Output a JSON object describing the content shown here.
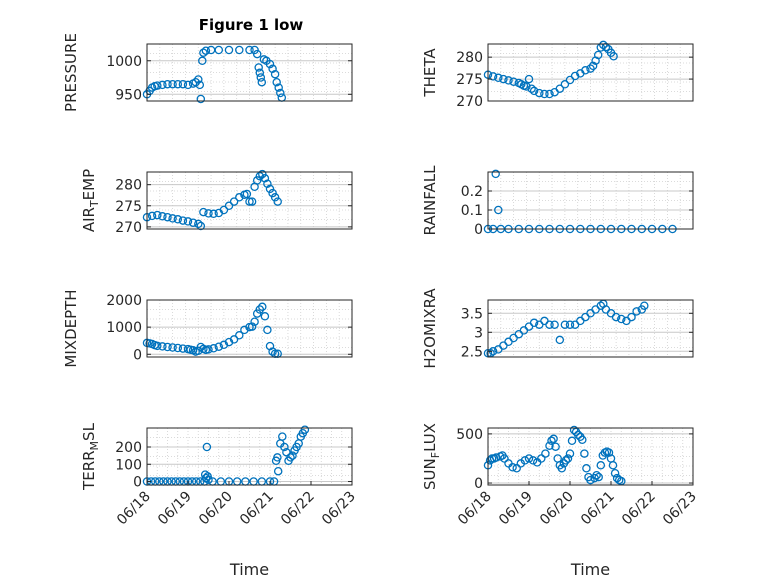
{
  "figure_title": "Figure 1 low",
  "marker_color": "#0072BD",
  "chart_data": [
    {
      "type": "scatter",
      "ylabel": "PRESSURE",
      "ylim": [
        940,
        1025
      ],
      "yticks": [
        950,
        1000
      ],
      "xlim": [
        "06/18",
        "06/22"
      ],
      "xticks": [],
      "points": [
        [
          0.0,
          950
        ],
        [
          0.05,
          955
        ],
        [
          0.1,
          960
        ],
        [
          0.15,
          962
        ],
        [
          0.2,
          963
        ],
        [
          0.3,
          964
        ],
        [
          0.4,
          965
        ],
        [
          0.5,
          965
        ],
        [
          0.6,
          965
        ],
        [
          0.7,
          965
        ],
        [
          0.8,
          964
        ],
        [
          0.9,
          966
        ],
        [
          0.95,
          968
        ],
        [
          1.0,
          972
        ],
        [
          1.03,
          964
        ],
        [
          1.05,
          943
        ],
        [
          1.08,
          1000
        ],
        [
          1.1,
          1012
        ],
        [
          1.15,
          1015
        ],
        [
          1.25,
          1016
        ],
        [
          1.4,
          1016
        ],
        [
          1.6,
          1016
        ],
        [
          1.8,
          1016
        ],
        [
          2.0,
          1016
        ],
        [
          2.1,
          1016
        ],
        [
          2.15,
          1010
        ],
        [
          2.18,
          990
        ],
        [
          2.2,
          982
        ],
        [
          2.22,
          975
        ],
        [
          2.24,
          968
        ],
        [
          2.28,
          1002
        ],
        [
          2.33,
          1000
        ],
        [
          2.4,
          995
        ],
        [
          2.45,
          988
        ],
        [
          2.5,
          980
        ],
        [
          2.53,
          968
        ],
        [
          2.57,
          960
        ],
        [
          2.6,
          952
        ],
        [
          2.63,
          945
        ]
      ]
    },
    {
      "type": "scatter",
      "ylabel": "THETA",
      "ylim": [
        270,
        283
      ],
      "yticks": [
        270,
        275,
        280
      ],
      "xlim": [
        "06/18",
        "06/22"
      ],
      "xticks": [],
      "points": [
        [
          0.0,
          276
        ],
        [
          0.1,
          275.6
        ],
        [
          0.2,
          275.3
        ],
        [
          0.3,
          275
        ],
        [
          0.4,
          274.7
        ],
        [
          0.5,
          274.4
        ],
        [
          0.6,
          274.1
        ],
        [
          0.65,
          273.8
        ],
        [
          0.7,
          273.5
        ],
        [
          0.75,
          273.3
        ],
        [
          0.8,
          275
        ],
        [
          0.85,
          272.8
        ],
        [
          0.9,
          272.3
        ],
        [
          1.0,
          271.8
        ],
        [
          1.1,
          271.6
        ],
        [
          1.2,
          271.6
        ],
        [
          1.3,
          272
        ],
        [
          1.4,
          272.8
        ],
        [
          1.5,
          273.8
        ],
        [
          1.6,
          274.8
        ],
        [
          1.7,
          275.7
        ],
        [
          1.8,
          276.3
        ],
        [
          1.9,
          277
        ],
        [
          2.0,
          277.4
        ],
        [
          2.05,
          278
        ],
        [
          2.1,
          279.2
        ],
        [
          2.15,
          280.5
        ],
        [
          2.2,
          282.2
        ],
        [
          2.25,
          282.8
        ],
        [
          2.3,
          282.3
        ],
        [
          2.35,
          281.8
        ],
        [
          2.4,
          281
        ],
        [
          2.45,
          280.2
        ]
      ]
    },
    {
      "type": "scatter",
      "ylabel": "AIR_T_EMP",
      "ylim": [
        269.5,
        283
      ],
      "yticks": [
        270,
        275,
        280
      ],
      "xlim": [
        "06/18",
        "06/22"
      ],
      "xticks": [],
      "points": [
        [
          0.0,
          272.3
        ],
        [
          0.1,
          272.6
        ],
        [
          0.2,
          272.8
        ],
        [
          0.3,
          272.5
        ],
        [
          0.4,
          272.3
        ],
        [
          0.5,
          272
        ],
        [
          0.6,
          271.8
        ],
        [
          0.7,
          271.5
        ],
        [
          0.8,
          271.3
        ],
        [
          0.9,
          271
        ],
        [
          1.0,
          270.7
        ],
        [
          1.05,
          270.2
        ],
        [
          1.1,
          273.5
        ],
        [
          1.2,
          273.2
        ],
        [
          1.3,
          273.1
        ],
        [
          1.4,
          273.3
        ],
        [
          1.5,
          274
        ],
        [
          1.6,
          275
        ],
        [
          1.7,
          276
        ],
        [
          1.8,
          277
        ],
        [
          1.9,
          277.6
        ],
        [
          1.95,
          277.8
        ],
        [
          2.0,
          276
        ],
        [
          2.05,
          276
        ],
        [
          2.1,
          279.5
        ],
        [
          2.15,
          281
        ],
        [
          2.2,
          282
        ],
        [
          2.25,
          282.5
        ],
        [
          2.3,
          281.5
        ],
        [
          2.35,
          280.2
        ],
        [
          2.4,
          279
        ],
        [
          2.45,
          278
        ],
        [
          2.5,
          277
        ],
        [
          2.55,
          276
        ]
      ]
    },
    {
      "type": "scatter",
      "ylabel": "RAINFALL",
      "ylim": [
        0,
        0.3
      ],
      "yticks": [
        0,
        0.1,
        0.2
      ],
      "xlim": [
        "06/18",
        "06/22"
      ],
      "xticks": [],
      "points": [
        [
          0.0,
          0
        ],
        [
          0.1,
          0
        ],
        [
          0.15,
          0.29
        ],
        [
          0.2,
          0.1
        ],
        [
          0.25,
          0
        ],
        [
          0.4,
          0
        ],
        [
          0.6,
          0
        ],
        [
          0.8,
          0
        ],
        [
          1.0,
          0
        ],
        [
          1.2,
          0
        ],
        [
          1.4,
          0
        ],
        [
          1.6,
          0
        ],
        [
          1.8,
          0
        ],
        [
          2.0,
          0
        ],
        [
          2.2,
          0
        ],
        [
          2.4,
          0
        ],
        [
          2.6,
          0
        ],
        [
          2.8,
          0
        ],
        [
          3.0,
          0
        ],
        [
          3.2,
          0
        ],
        [
          3.4,
          0
        ],
        [
          3.6,
          0
        ]
      ]
    },
    {
      "type": "scatter",
      "ylabel": "MIXDEPTH",
      "ylim": [
        -100,
        2000
      ],
      "yticks": [
        0,
        1000,
        2000
      ],
      "xlim": [
        "06/18",
        "06/22"
      ],
      "xticks": [],
      "points": [
        [
          0.0,
          420
        ],
        [
          0.05,
          400
        ],
        [
          0.1,
          380
        ],
        [
          0.15,
          340
        ],
        [
          0.2,
          310
        ],
        [
          0.3,
          290
        ],
        [
          0.4,
          270
        ],
        [
          0.5,
          250
        ],
        [
          0.6,
          230
        ],
        [
          0.7,
          210
        ],
        [
          0.8,
          190
        ],
        [
          0.85,
          170
        ],
        [
          0.9,
          150
        ],
        [
          0.95,
          100
        ],
        [
          1.0,
          130
        ],
        [
          1.05,
          270
        ],
        [
          1.1,
          200
        ],
        [
          1.15,
          160
        ],
        [
          1.2,
          180
        ],
        [
          1.3,
          220
        ],
        [
          1.4,
          280
        ],
        [
          1.5,
          350
        ],
        [
          1.6,
          450
        ],
        [
          1.7,
          550
        ],
        [
          1.8,
          700
        ],
        [
          1.9,
          900
        ],
        [
          2.0,
          1000
        ],
        [
          2.05,
          1020
        ],
        [
          2.1,
          1200
        ],
        [
          2.15,
          1500
        ],
        [
          2.2,
          1650
        ],
        [
          2.25,
          1750
        ],
        [
          2.3,
          1400
        ],
        [
          2.35,
          900
        ],
        [
          2.4,
          300
        ],
        [
          2.45,
          100
        ],
        [
          2.5,
          20
        ],
        [
          2.55,
          20
        ]
      ]
    },
    {
      "type": "scatter",
      "ylabel": "H2OMIXRA",
      "ylim": [
        2.35,
        3.85
      ],
      "yticks": [
        2.5,
        3,
        3.5
      ],
      "xlim": [
        "06/18",
        "06/22"
      ],
      "xticks": [],
      "points": [
        [
          0.0,
          2.45
        ],
        [
          0.05,
          2.45
        ],
        [
          0.1,
          2.5
        ],
        [
          0.2,
          2.55
        ],
        [
          0.3,
          2.65
        ],
        [
          0.4,
          2.75
        ],
        [
          0.5,
          2.85
        ],
        [
          0.6,
          2.95
        ],
        [
          0.7,
          3.05
        ],
        [
          0.8,
          3.15
        ],
        [
          0.9,
          3.25
        ],
        [
          1.0,
          3.2
        ],
        [
          1.1,
          3.3
        ],
        [
          1.2,
          3.2
        ],
        [
          1.3,
          3.2
        ],
        [
          1.4,
          2.8
        ],
        [
          1.5,
          3.2
        ],
        [
          1.6,
          3.2
        ],
        [
          1.7,
          3.2
        ],
        [
          1.8,
          3.3
        ],
        [
          1.9,
          3.4
        ],
        [
          2.0,
          3.5
        ],
        [
          2.1,
          3.6
        ],
        [
          2.2,
          3.7
        ],
        [
          2.25,
          3.75
        ],
        [
          2.3,
          3.6
        ],
        [
          2.4,
          3.5
        ],
        [
          2.5,
          3.4
        ],
        [
          2.6,
          3.35
        ],
        [
          2.7,
          3.3
        ],
        [
          2.8,
          3.4
        ],
        [
          2.9,
          3.55
        ],
        [
          3.0,
          3.6
        ],
        [
          3.05,
          3.7
        ]
      ]
    },
    {
      "type": "scatter",
      "ylabel": "TERR_M_SL",
      "ylim": [
        -20,
        310
      ],
      "yticks": [
        0,
        100,
        200
      ],
      "xlim": [
        "06/18",
        "06/23"
      ],
      "xticks": [
        "06/18",
        "06/19",
        "06/20",
        "06/21",
        "06/22",
        "06/23"
      ],
      "xlabel": "Time",
      "points": [
        [
          0.0,
          0
        ],
        [
          0.1,
          0
        ],
        [
          0.2,
          0
        ],
        [
          0.3,
          0
        ],
        [
          0.4,
          0
        ],
        [
          0.5,
          0
        ],
        [
          0.6,
          0
        ],
        [
          0.7,
          0
        ],
        [
          0.8,
          0
        ],
        [
          0.9,
          0
        ],
        [
          1.0,
          0
        ],
        [
          1.1,
          0
        ],
        [
          1.2,
          0
        ],
        [
          1.3,
          0
        ],
        [
          1.4,
          0
        ],
        [
          1.42,
          40
        ],
        [
          1.44,
          20
        ],
        [
          1.46,
          200
        ],
        [
          1.48,
          30
        ],
        [
          1.5,
          10
        ],
        [
          1.6,
          0
        ],
        [
          1.8,
          0
        ],
        [
          2.0,
          0
        ],
        [
          2.2,
          0
        ],
        [
          2.4,
          0
        ],
        [
          2.6,
          0
        ],
        [
          2.8,
          0
        ],
        [
          3.0,
          0
        ],
        [
          3.1,
          0
        ],
        [
          3.15,
          120
        ],
        [
          3.18,
          140
        ],
        [
          3.2,
          60
        ],
        [
          3.25,
          220
        ],
        [
          3.3,
          260
        ],
        [
          3.35,
          200
        ],
        [
          3.4,
          170
        ],
        [
          3.45,
          120
        ],
        [
          3.5,
          140
        ],
        [
          3.55,
          150
        ],
        [
          3.6,
          180
        ],
        [
          3.65,
          200
        ],
        [
          3.7,
          220
        ],
        [
          3.75,
          260
        ],
        [
          3.8,
          280
        ],
        [
          3.85,
          300
        ]
      ]
    },
    {
      "type": "scatter",
      "ylabel": "SUN_F_LUX",
      "ylim": [
        -20,
        560
      ],
      "yticks": [
        0,
        500
      ],
      "xlim": [
        "06/18",
        "06/23"
      ],
      "xticks": [
        "06/18",
        "06/19",
        "06/20",
        "06/21",
        "06/22",
        "06/23"
      ],
      "xlabel": "Time",
      "points": [
        [
          0.0,
          180
        ],
        [
          0.05,
          230
        ],
        [
          0.1,
          250
        ],
        [
          0.15,
          250
        ],
        [
          0.2,
          260
        ],
        [
          0.3,
          270
        ],
        [
          0.35,
          280
        ],
        [
          0.4,
          250
        ],
        [
          0.5,
          200
        ],
        [
          0.6,
          160
        ],
        [
          0.7,
          150
        ],
        [
          0.8,
          200
        ],
        [
          0.9,
          230
        ],
        [
          1.0,
          250
        ],
        [
          1.1,
          230
        ],
        [
          1.2,
          210
        ],
        [
          1.3,
          250
        ],
        [
          1.4,
          300
        ],
        [
          1.5,
          380
        ],
        [
          1.55,
          430
        ],
        [
          1.6,
          450
        ],
        [
          1.65,
          370
        ],
        [
          1.7,
          250
        ],
        [
          1.75,
          180
        ],
        [
          1.8,
          150
        ],
        [
          1.85,
          200
        ],
        [
          1.9,
          230
        ],
        [
          1.95,
          250
        ],
        [
          2.0,
          300
        ],
        [
          2.05,
          430
        ],
        [
          2.1,
          540
        ],
        [
          2.15,
          520
        ],
        [
          2.2,
          490
        ],
        [
          2.25,
          470
        ],
        [
          2.3,
          440
        ],
        [
          2.35,
          300
        ],
        [
          2.4,
          150
        ],
        [
          2.45,
          60
        ],
        [
          2.5,
          30
        ],
        [
          2.6,
          50
        ],
        [
          2.65,
          80
        ],
        [
          2.7,
          60
        ],
        [
          2.75,
          180
        ],
        [
          2.8,
          280
        ],
        [
          2.85,
          310
        ],
        [
          2.9,
          320
        ],
        [
          2.95,
          310
        ],
        [
          3.0,
          250
        ],
        [
          3.05,
          180
        ],
        [
          3.1,
          100
        ],
        [
          3.15,
          50
        ],
        [
          3.2,
          30
        ],
        [
          3.25,
          20
        ]
      ]
    }
  ]
}
